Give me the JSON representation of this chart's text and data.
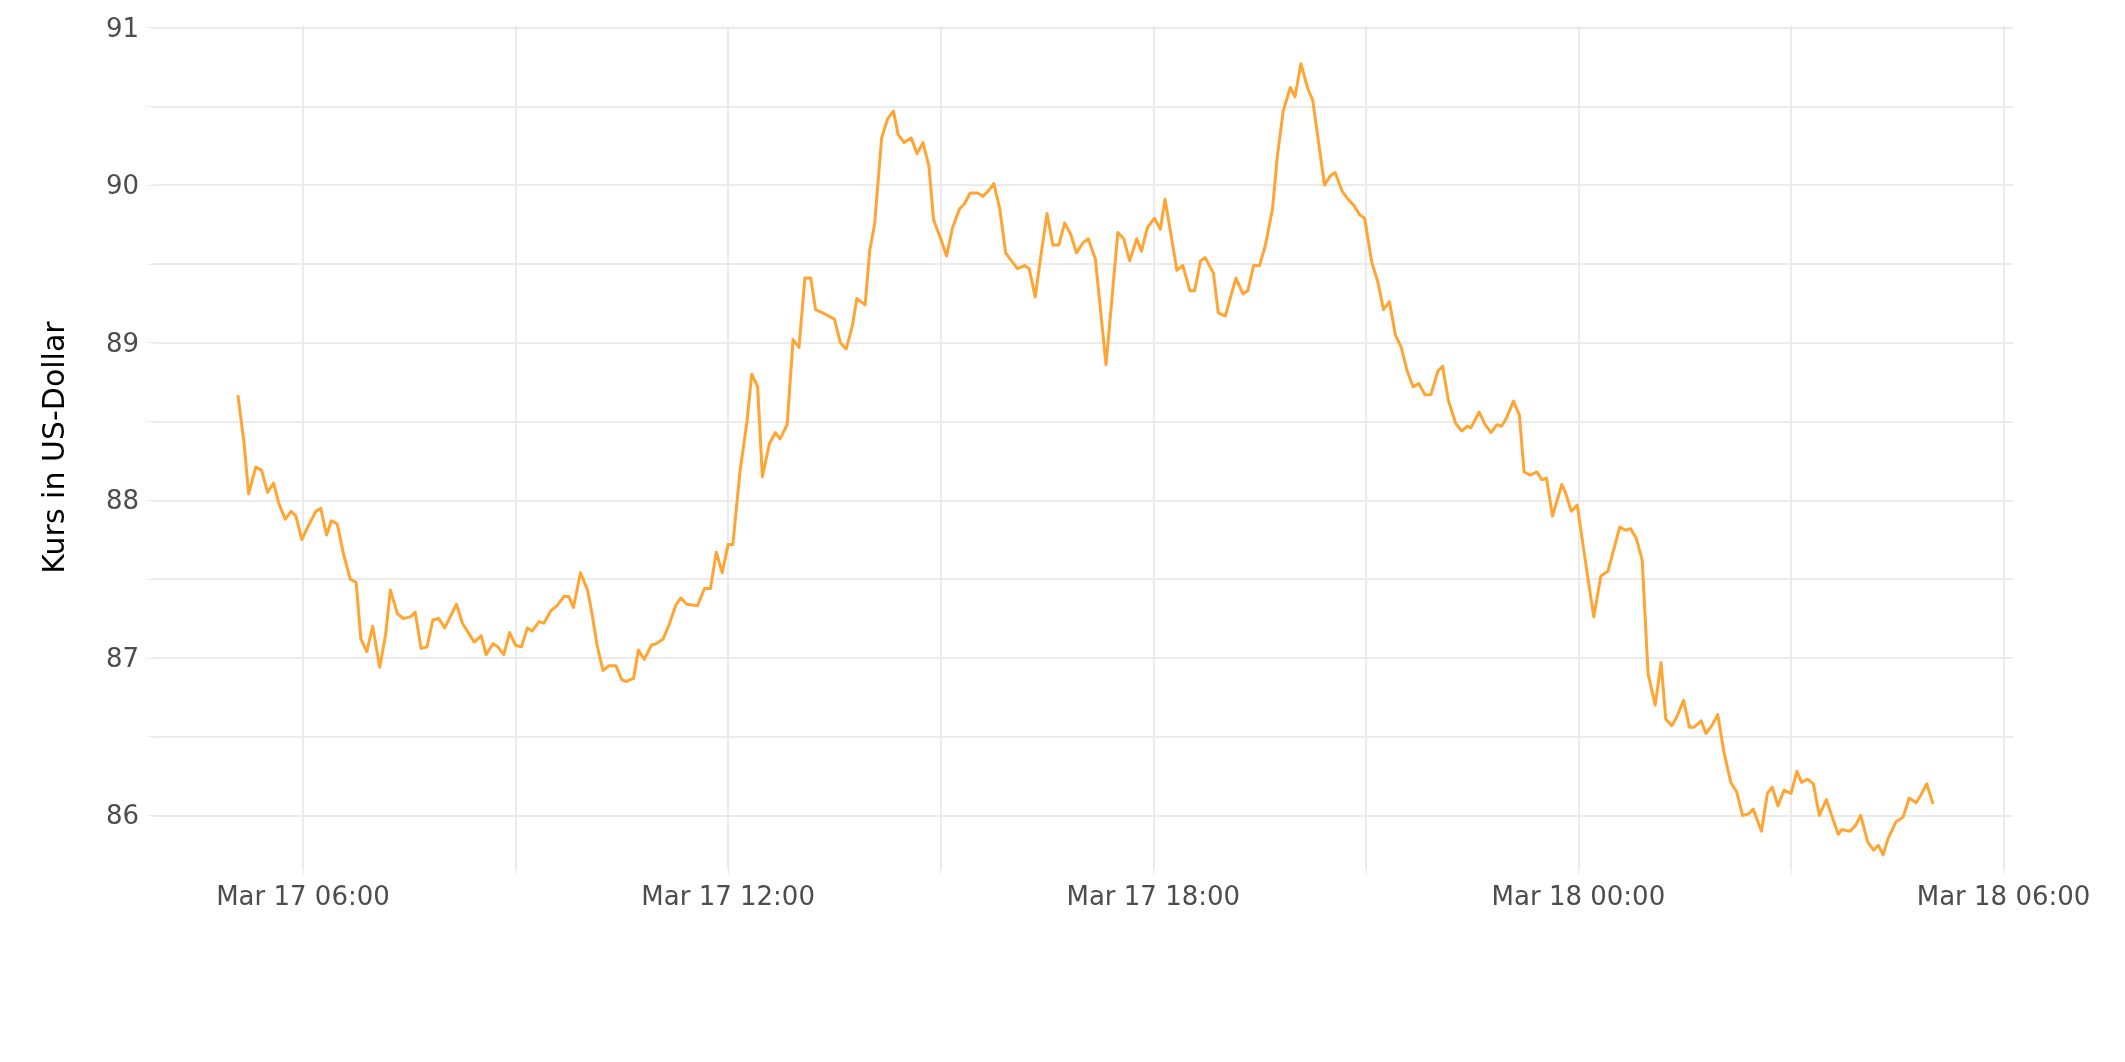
{
  "chart_data": {
    "type": "line",
    "ylabel": "Kurs in US-Dollar",
    "xlim": [
      "--03-17T03:53",
      "--03-18T06:08"
    ],
    "xticks": [
      {
        "value": "--03-17T06:00",
        "label": "Mar 17 06:00"
      },
      {
        "value": "--03-17T09:00",
        "label": null
      },
      {
        "value": "--03-17T12:00",
        "label": "Mar 17 12:00"
      },
      {
        "value": "--03-17T15:00",
        "label": null
      },
      {
        "value": "--03-17T18:00",
        "label": "Mar 17 18:00"
      },
      {
        "value": "--03-17T21:00",
        "label": null
      },
      {
        "value": "--03-18T00:00",
        "label": "Mar 18 00:00"
      },
      {
        "value": "--03-18T03:00",
        "label": null
      },
      {
        "value": "--03-18T06:00",
        "label": "Mar 18 06:00"
      }
    ],
    "ylim": [
      85.66,
      91.01
    ],
    "yticks": [
      86,
      {
        "value": 86.5,
        "label": null
      },
      87,
      {
        "value": 87.5,
        "label": null
      },
      88,
      {
        "value": 88.5,
        "label": null
      },
      89,
      {
        "value": 89.5,
        "label": null
      },
      90,
      {
        "value": 90.5,
        "label": null
      },
      91
    ],
    "grid": true,
    "marker": "none",
    "line_style": "solid",
    "series": [
      {
        "color": "#ffa533",
        "x": [
          "--03-17T05:05",
          "--03-17T05:10",
          "--03-17T05:14",
          "--03-17T05:20",
          "--03-17T05:25",
          "--03-17T05:30",
          "--03-17T05:35",
          "--03-17T05:40",
          "--03-17T05:45",
          "--03-17T05:50",
          "--03-17T05:54",
          "--03-17T05:59",
          "--03-17T06:04",
          "--03-17T06:11",
          "--03-17T06:15",
          "--03-17T06:20",
          "--03-17T06:24",
          "--03-17T06:29",
          "--03-17T06:34",
          "--03-17T06:40",
          "--03-17T06:45",
          "--03-17T06:49",
          "--03-17T06:54",
          "--03-17T06:59",
          "--03-17T07:05",
          "--03-17T07:10",
          "--03-17T07:14",
          "--03-17T07:20",
          "--03-17T07:25",
          "--03-17T07:31",
          "--03-17T07:35",
          "--03-17T07:40",
          "--03-17T07:45",
          "--03-17T07:50",
          "--03-17T07:55",
          "--03-17T08:00",
          "--03-17T08:10",
          "--03-17T08:15",
          "--03-17T08:20",
          "--03-17T08:25",
          "--03-17T08:31",
          "--03-17T08:35",
          "--03-17T08:41",
          "--03-17T08:45",
          "--03-17T08:50",
          "--03-17T08:55",
          "--03-17T09:00",
          "--03-17T09:05",
          "--03-17T09:10",
          "--03-17T09:14",
          "--03-17T09:20",
          "--03-17T09:24",
          "--03-17T09:30",
          "--03-17T09:35",
          "--03-17T09:41",
          "--03-17T09:45",
          "--03-17T09:49",
          "--03-17T09:55",
          "--03-17T10:01",
          "--03-17T10:05",
          "--03-17T10:09",
          "--03-17T10:14",
          "--03-17T10:19",
          "--03-17T10:25",
          "--03-17T10:30",
          "--03-17T10:34",
          "--03-17T10:40",
          "--03-17T10:44",
          "--03-17T10:49",
          "--03-17T10:55",
          "--03-17T10:59",
          "--03-17T11:05",
          "--03-17T11:10",
          "--03-17T11:16",
          "--03-17T11:20",
          "--03-17T11:25",
          "--03-17T11:34",
          "--03-17T11:40",
          "--03-17T11:45",
          "--03-17T11:50",
          "--03-17T11:55",
          "--03-17T12:00",
          "--03-17T12:04",
          "--03-17T12:10",
          "--03-17T12:16",
          "--03-17T12:20",
          "--03-17T12:25",
          "--03-17T12:29",
          "--03-17T12:35",
          "--03-17T12:40",
          "--03-17T12:44",
          "--03-17T12:50",
          "--03-17T12:55",
          "--03-17T13:00",
          "--03-17T13:05",
          "--03-17T13:10",
          "--03-17T13:14",
          "--03-17T13:20",
          "--03-17T13:30",
          "--03-17T13:35",
          "--03-17T13:40",
          "--03-17T13:45",
          "--03-17T13:49",
          "--03-17T13:56",
          "--03-17T14:00",
          "--03-17T14:04",
          "--03-17T14:10",
          "--03-17T14:15",
          "--03-17T14:20",
          "--03-17T14:24",
          "--03-17T14:29",
          "--03-17T14:35",
          "--03-17T14:40",
          "--03-17T14:45",
          "--03-17T14:50",
          "--03-17T14:54",
          "--03-17T15:00",
          "--03-17T15:05",
          "--03-17T15:10",
          "--03-17T15:16",
          "--03-17T15:20",
          "--03-17T15:25",
          "--03-17T15:31",
          "--03-17T15:36",
          "--03-17T15:41",
          "--03-17T15:45",
          "--03-17T15:50",
          "--03-17T15:55",
          "--03-17T16:00",
          "--03-17T16:05",
          "--03-17T16:11",
          "--03-17T16:15",
          "--03-17T16:20",
          "--03-17T16:25",
          "--03-17T16:30",
          "--03-17T16:35",
          "--03-17T16:40",
          "--03-17T16:45",
          "--03-17T16:50",
          "--03-17T16:55",
          "--03-17T17:00",
          "--03-17T17:05",
          "--03-17T17:11",
          "--03-17T17:20",
          "--03-17T17:30",
          "--03-17T17:35",
          "--03-17T17:40",
          "--03-17T17:46",
          "--03-17T17:50",
          "--03-17T17:55",
          "--03-17T18:01",
          "--03-17T18:06",
          "--03-17T18:10",
          "--03-17T18:20",
          "--03-17T18:25",
          "--03-17T18:31",
          "--03-17T18:35",
          "--03-17T18:40",
          "--03-17T18:44",
          "--03-17T18:51",
          "--03-17T18:55",
          "--03-17T19:01",
          "--03-17T19:10",
          "--03-17T19:16",
          "--03-17T19:20",
          "--03-17T19:25",
          "--03-17T19:30",
          "--03-17T19:35",
          "--03-17T19:41",
          "--03-17T19:45",
          "--03-17T19:50",
          "--03-17T19:56",
          "--03-17T20:00",
          "--03-17T20:05",
          "--03-17T20:11",
          "--03-17T20:15",
          "--03-17T20:25",
          "--03-17T20:30",
          "--03-17T20:34",
          "--03-17T20:40",
          "--03-17T20:45",
          "--03-17T20:50",
          "--03-17T20:55",
          "--03-17T20:59",
          "--03-17T21:05",
          "--03-17T21:10",
          "--03-17T21:15",
          "--03-17T21:20",
          "--03-17T21:25",
          "--03-17T21:30",
          "--03-17T21:35",
          "--03-17T21:40",
          "--03-17T21:45",
          "--03-17T21:50",
          "--03-17T21:55",
          "--03-17T22:01",
          "--03-17T22:05",
          "--03-17T22:10",
          "--03-17T22:16",
          "--03-17T22:21",
          "--03-17T22:26",
          "--03-17T22:29",
          "--03-17T22:36",
          "--03-17T22:41",
          "--03-17T22:46",
          "--03-17T22:51",
          "--03-17T22:55",
          "--03-17T22:59",
          "--03-17T23:05",
          "--03-17T23:10",
          "--03-17T23:14",
          "--03-17T23:19",
          "--03-17T23:25",
          "--03-17T23:29",
          "--03-17T23:33",
          "--03-17T23:38",
          "--03-17T23:46",
          "--03-17T23:49",
          "--03-17T23:54",
          "--03-17T23:59",
          "--03-18T00:05",
          "--03-18T00:13",
          "--03-18T00:19",
          "--03-18T00:25",
          "--03-18T00:35",
          "--03-18T00:40",
          "--03-18T00:44",
          "--03-18T00:49",
          "--03-18T00:54",
          "--03-18T00:59",
          "--03-18T01:05",
          "--03-18T01:10",
          "--03-18T01:14",
          "--03-18T01:19",
          "--03-18T01:23",
          "--03-18T01:29",
          "--03-18T01:34",
          "--03-18T01:38",
          "--03-18T01:44",
          "--03-18T01:48",
          "--03-18T01:53",
          "--03-18T01:58",
          "--03-18T02:03",
          "--03-18T02:09",
          "--03-18T02:14",
          "--03-18T02:19",
          "--03-18T02:24",
          "--03-18T02:28",
          "--03-18T02:35",
          "--03-18T02:40",
          "--03-18T02:44",
          "--03-18T02:49",
          "--03-18T02:54",
          "--03-18T03:00",
          "--03-18T03:05",
          "--03-18T03:09",
          "--03-18T03:14",
          "--03-18T03:19",
          "--03-18T03:24",
          "--03-18T03:30",
          "--03-18T03:34",
          "--03-18T03:40",
          "--03-18T03:43",
          "--03-18T03:50",
          "--03-18T03:55",
          "--03-18T03:59",
          "--03-18T04:05",
          "--03-18T04:10",
          "--03-18T04:14",
          "--03-18T04:18",
          "--03-18T04:22",
          "--03-18T04:29",
          "--03-18T04:35",
          "--03-18T04:40",
          "--03-18T04:46",
          "--03-18T04:50",
          "--03-18T04:55",
          "--03-18T05:00"
        ],
        "values": [
          88.66,
          88.37,
          88.04,
          88.21,
          88.19,
          88.05,
          88.11,
          87.97,
          87.88,
          87.93,
          87.9,
          87.75,
          87.83,
          87.93,
          87.95,
          87.78,
          87.87,
          87.85,
          87.67,
          87.5,
          87.48,
          87.12,
          87.04,
          87.2,
          86.94,
          87.15,
          87.43,
          87.28,
          87.25,
          87.26,
          87.29,
          87.06,
          87.07,
          87.24,
          87.25,
          87.19,
          87.34,
          87.22,
          87.16,
          87.1,
          87.14,
          87.02,
          87.09,
          87.07,
          87.02,
          87.16,
          87.08,
          87.07,
          87.19,
          87.17,
          87.23,
          87.22,
          87.3,
          87.33,
          87.39,
          87.39,
          87.32,
          87.54,
          87.43,
          87.27,
          87.08,
          86.92,
          86.95,
          86.95,
          86.86,
          86.85,
          86.87,
          87.05,
          86.99,
          87.08,
          87.09,
          87.12,
          87.21,
          87.34,
          87.38,
          87.34,
          87.33,
          87.44,
          87.44,
          87.67,
          87.54,
          87.72,
          87.72,
          88.18,
          88.5,
          88.8,
          88.72,
          88.15,
          88.36,
          88.43,
          88.39,
          88.48,
          89.02,
          88.97,
          89.41,
          89.41,
          89.21,
          89.19,
          89.15,
          89.0,
          88.96,
          89.1,
          89.28,
          89.24,
          89.59,
          89.75,
          90.3,
          90.42,
          90.47,
          90.32,
          90.27,
          90.3,
          90.2,
          90.27,
          90.12,
          89.78,
          89.66,
          89.55,
          89.73,
          89.85,
          89.88,
          89.95,
          89.95,
          89.93,
          89.97,
          90.01,
          89.85,
          89.57,
          89.52,
          89.47,
          89.49,
          89.47,
          89.29,
          89.56,
          89.82,
          89.62,
          89.62,
          89.76,
          89.69,
          89.57,
          89.63,
          89.66,
          89.53,
          88.86,
          89.7,
          89.66,
          89.52,
          89.66,
          89.58,
          89.73,
          89.79,
          89.72,
          89.91,
          89.46,
          89.49,
          89.33,
          89.33,
          89.52,
          89.54,
          89.44,
          89.19,
          89.17,
          89.41,
          89.31,
          89.33,
          89.49,
          89.49,
          89.62,
          89.85,
          90.18,
          90.47,
          90.62,
          90.56,
          90.77,
          90.61,
          90.54,
          90.0,
          90.06,
          90.08,
          89.96,
          89.91,
          89.87,
          89.81,
          89.79,
          89.51,
          89.39,
          89.21,
          89.26,
          89.05,
          88.97,
          88.82,
          88.72,
          88.74,
          88.67,
          88.67,
          88.82,
          88.85,
          88.63,
          88.49,
          88.44,
          88.47,
          88.46,
          88.56,
          88.48,
          88.43,
          88.48,
          88.47,
          88.52,
          88.63,
          88.54,
          88.18,
          88.16,
          88.18,
          88.13,
          88.14,
          87.9,
          88.1,
          88.05,
          87.93,
          87.97,
          87.66,
          87.26,
          87.52,
          87.55,
          87.83,
          87.81,
          87.82,
          87.76,
          87.62,
          86.9,
          86.7,
          86.97,
          86.61,
          86.57,
          86.62,
          86.73,
          86.56,
          86.56,
          86.6,
          86.52,
          86.57,
          86.64,
          86.41,
          86.21,
          86.15,
          86.0,
          86.01,
          86.04,
          85.9,
          86.14,
          86.18,
          86.06,
          86.16,
          86.14,
          86.28,
          86.21,
          86.23,
          86.2,
          86.0,
          86.1,
          86.01,
          85.88,
          85.91,
          85.9,
          85.94,
          86.0,
          85.83,
          85.78,
          85.81,
          85.75,
          85.85,
          85.96,
          85.99,
          86.11,
          86.08,
          86.13,
          86.2,
          86.08
        ]
      }
    ]
  }
}
